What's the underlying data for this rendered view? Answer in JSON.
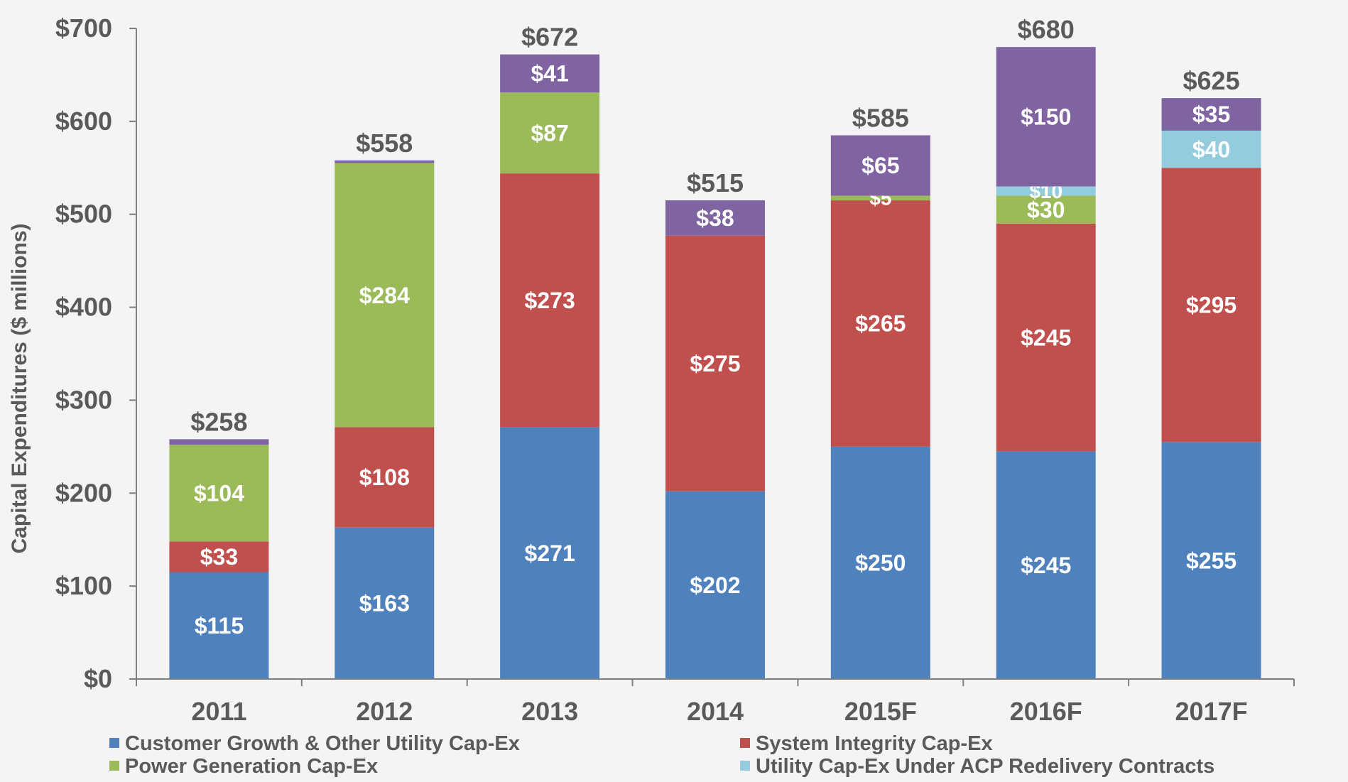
{
  "chart_data": {
    "type": "bar",
    "stacked": true,
    "title": "",
    "xlabel": "",
    "ylabel": "Capital Expenditures ($ millions)",
    "ylim": [
      0,
      700
    ],
    "y_ticks": [
      "$0",
      "$100",
      "$200",
      "$300",
      "$400",
      "$500",
      "$600",
      "$700"
    ],
    "y_tick_values": [
      0,
      100,
      200,
      300,
      400,
      500,
      600,
      700
    ],
    "grid": false,
    "legend_position": "bottom",
    "categories": [
      "2011",
      "2012",
      "2013",
      "2014",
      "2015F",
      "2016F",
      "2017F"
    ],
    "totals": [
      258,
      558,
      672,
      515,
      585,
      680,
      625
    ],
    "total_labels": [
      "$258",
      "$558",
      "$672",
      "$515",
      "$585",
      "$680",
      "$625"
    ],
    "series": [
      {
        "name": "Customer Growth & Other Utility Cap-Ex",
        "color": "#4f81bd",
        "values": [
          115,
          163,
          271,
          202,
          250,
          245,
          255
        ],
        "labels": [
          "$115",
          "$163",
          "$271",
          "$202",
          "$250",
          "$245",
          "$255"
        ]
      },
      {
        "name": "System Integrity Cap-Ex",
        "color": "#c0504d",
        "values": [
          33,
          108,
          273,
          275,
          265,
          245,
          295
        ],
        "labels": [
          "$33",
          "$108",
          "$273",
          "$275",
          "$265",
          "$245",
          "$295"
        ]
      },
      {
        "name": "Power Generation Cap-Ex",
        "color": "#9bbb59",
        "values": [
          104,
          284,
          87,
          0,
          5,
          30,
          0
        ],
        "labels": [
          "$104",
          "$284",
          "$87",
          "",
          "$5",
          "$30",
          ""
        ]
      },
      {
        "name": "Utility Cap-Ex Under ACP Redelivery Contracts",
        "color": "#93cddd",
        "values": [
          0,
          0,
          0,
          0,
          0,
          10,
          40
        ],
        "labels": [
          "",
          "",
          "",
          "",
          "",
          "$10",
          "$40"
        ]
      },
      {
        "name": "",
        "color": "#8064a2",
        "values": [
          6,
          3,
          41,
          38,
          65,
          150,
          35
        ],
        "labels": [
          "",
          "",
          "$41",
          "$38",
          "$65",
          "$150",
          "$35"
        ]
      }
    ],
    "legend": [
      {
        "name": "Customer Growth & Other Utility Cap-Ex",
        "color": "#4f81bd"
      },
      {
        "name": "System Integrity Cap-Ex",
        "color": "#c0504d"
      },
      {
        "name": "Power Generation Cap-Ex",
        "color": "#9bbb59"
      },
      {
        "name": "Utility Cap-Ex Under ACP Redelivery Contracts",
        "color": "#93cddd"
      }
    ]
  }
}
